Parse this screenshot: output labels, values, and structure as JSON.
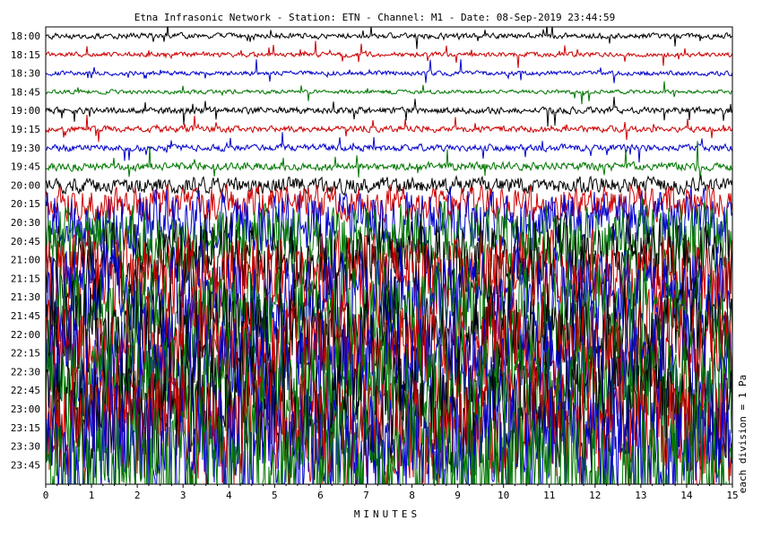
{
  "chart_data": {
    "type": "line",
    "title": "Etna Infrasonic Network - Station: ETN - Channel: M1 - Date: 08-Sep-2019 23:44:59",
    "xlabel": "MINUTES",
    "right_label": "each division = 1 Pa",
    "xlim": [
      0,
      15
    ],
    "x_ticks": [
      "0",
      "1",
      "2",
      "3",
      "4",
      "5",
      "6",
      "7",
      "8",
      "9",
      "10",
      "11",
      "12",
      "13",
      "14",
      "15"
    ],
    "row_labels": [
      "18:00",
      "18:15",
      "18:30",
      "18:45",
      "19:00",
      "19:15",
      "19:30",
      "19:45",
      "20:00",
      "20:15",
      "20:30",
      "20:45",
      "21:00",
      "21:15",
      "21:30",
      "21:45",
      "22:00",
      "22:15",
      "22:30",
      "22:45",
      "23:00",
      "23:15",
      "23:30",
      "23:45"
    ],
    "row_colors": [
      "#000000",
      "#cc0000",
      "#0000cc",
      "#007700"
    ],
    "row_amplitude": [
      0.4,
      0.35,
      0.35,
      0.3,
      0.5,
      0.45,
      0.5,
      0.6,
      1.2,
      2.5,
      4.5,
      5.5,
      6,
      6.5,
      7,
      7.5,
      8,
      8,
      8.5,
      8.5,
      9,
      9,
      9,
      9
    ],
    "grid": false
  }
}
